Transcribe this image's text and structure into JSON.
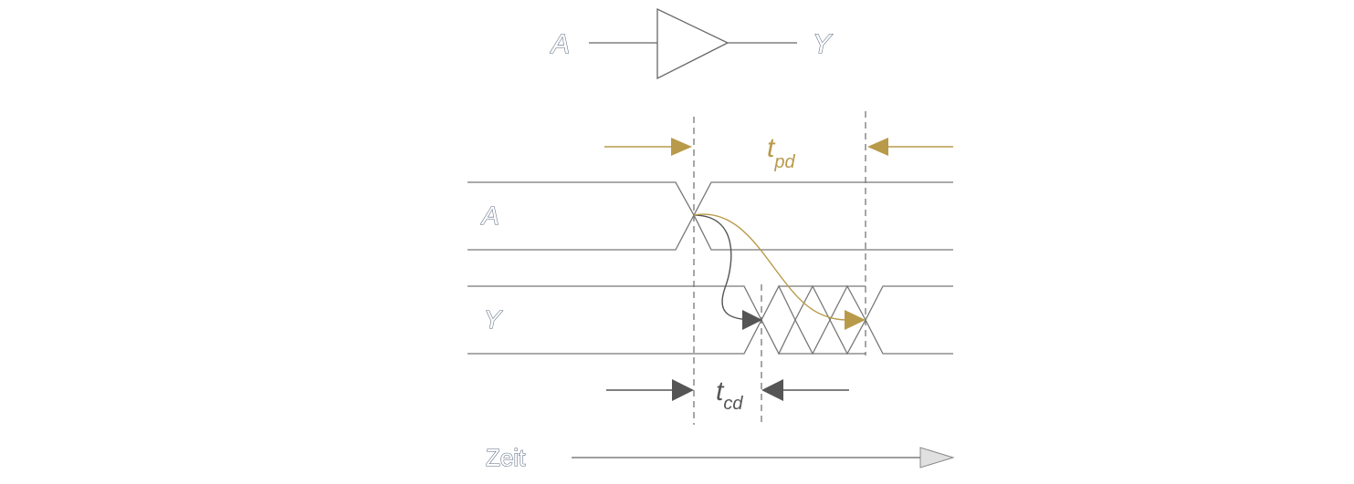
{
  "gate": {
    "input_label": "A",
    "output_label": "Y"
  },
  "signals": [
    {
      "label": "A"
    },
    {
      "label": "Y"
    }
  ],
  "timing": {
    "tpd_main": "t",
    "tpd_sub": "pd",
    "tcd_main": "t",
    "tcd_sub": "cd"
  },
  "time_axis": {
    "label": "Zeit"
  },
  "colors": {
    "propagation": "#b89a4a",
    "contamination": "#555555",
    "wave": "#777777",
    "label_outline": "#5a6a80"
  }
}
